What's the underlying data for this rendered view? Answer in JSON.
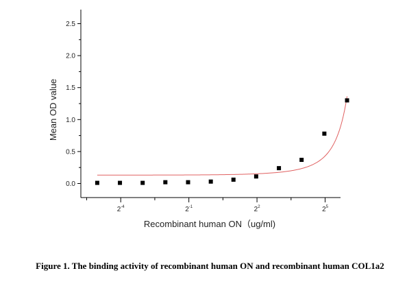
{
  "chart_data": {
    "type": "scatter",
    "title": "",
    "xlabel": "Recombinant human  ON（ug/ml)",
    "ylabel": "Mean OD value",
    "x_scale": "log2",
    "xlim": [
      0.0185,
      51.2
    ],
    "ylim": [
      -0.22,
      2.72
    ],
    "x_ticks": [
      {
        "base": "2",
        "exp": "-4",
        "value": 0.0625
      },
      {
        "base": "2",
        "exp": "-1",
        "value": 0.5
      },
      {
        "base": "2",
        "exp": "2",
        "value": 4
      },
      {
        "base": "2",
        "exp": "5",
        "value": 32
      }
    ],
    "y_ticks": [
      "0.0",
      "0.5",
      "1.0",
      "1.5",
      "2.0",
      "2.5"
    ],
    "y_tick_values": [
      0.0,
      0.5,
      1.0,
      1.5,
      2.0,
      2.5
    ],
    "series": [
      {
        "marker_color": "#000000",
        "x": [
          0.0305,
          0.061,
          0.122,
          0.244,
          0.488,
          0.977,
          1.95,
          3.9,
          7.81,
          15.6,
          31.25,
          62.5
        ],
        "y": [
          0.01,
          0.01,
          0.01,
          0.02,
          0.02,
          0.03,
          0.06,
          0.11,
          0.24,
          0.37,
          0.78,
          1.3
        ]
      }
    ],
    "fit_curve": {
      "color": "#e06060",
      "model": "exponential"
    },
    "grid": false,
    "legend": "none"
  },
  "caption": "Figure 1. The binding activity of recombinant human ON and recombinant human COL1a2"
}
